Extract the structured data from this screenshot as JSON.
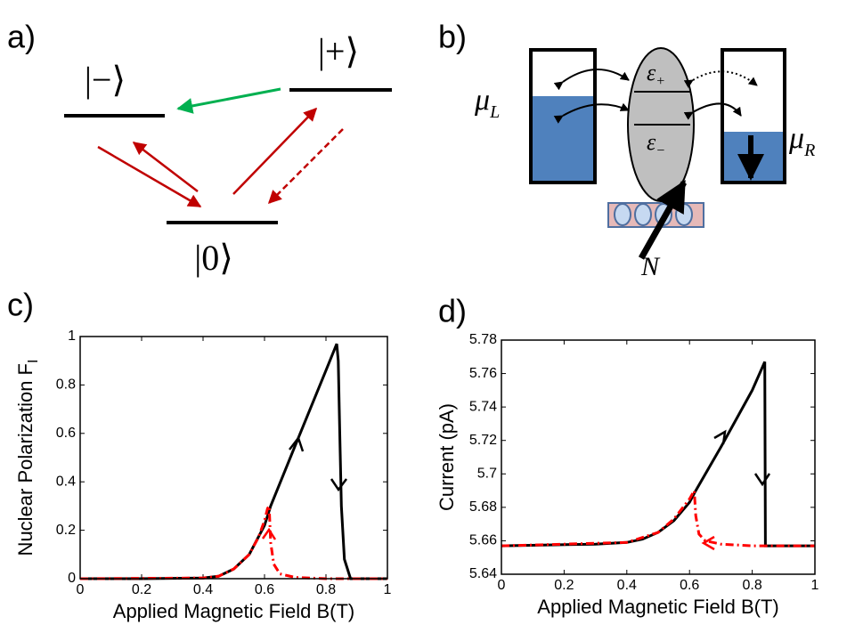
{
  "panels": {
    "a": {
      "label": "a)",
      "levels": [
        {
          "label": "|−⟩"
        },
        {
          "label": "|+⟩"
        },
        {
          "label": "|0⟩"
        }
      ]
    },
    "b": {
      "label": "b)",
      "mu": "μ",
      "mu_left_sub": "L",
      "mu_right_sub": "R",
      "epsilon": "ε",
      "eps_plus_sub": "+",
      "eps_minus_sub": "−",
      "nuclei": "N"
    }
  },
  "chart_data": [
    {
      "type": "line",
      "label": "c)",
      "xlabel": "Applied Magnetic Field B(T)",
      "ylabel": "Nuclear Polarization F",
      "ylabel_subscript": "I",
      "xlim": [
        0,
        1
      ],
      "ylim": [
        0,
        1
      ],
      "xticks": [
        0,
        0.2,
        0.4,
        0.6,
        0.8,
        1
      ],
      "yticks": [
        0,
        0.2,
        0.4,
        0.6,
        0.8,
        1
      ],
      "series": [
        {
          "color": "#000000",
          "linestyle": "solid",
          "x": [
            0,
            0.2,
            0.4,
            0.45,
            0.5,
            0.55,
            0.6,
            0.62,
            0.7,
            0.8,
            0.835,
            0.84,
            0.845,
            0.85,
            0.86,
            0.88,
            1
          ],
          "values": [
            0,
            0,
            0.003,
            0.01,
            0.04,
            0.1,
            0.22,
            0.3,
            0.55,
            0.86,
            0.97,
            0.9,
            0.6,
            0.3,
            0.08,
            0,
            0
          ]
        },
        {
          "color": "#ff0000",
          "linestyle": "dashdot",
          "x": [
            0,
            0.4,
            0.45,
            0.5,
            0.55,
            0.58,
            0.6,
            0.61,
            0.615,
            0.62,
            0.63,
            0.65,
            0.7,
            0.8,
            1
          ],
          "values": [
            0,
            0.003,
            0.01,
            0.04,
            0.1,
            0.17,
            0.24,
            0.29,
            0.3,
            0.15,
            0.06,
            0.02,
            0.005,
            0,
            0
          ]
        }
      ]
    },
    {
      "type": "line",
      "label": "d)",
      "xlabel": "Applied Magnetic Field B(T)",
      "ylabel": "Current (pA)",
      "xlim": [
        0,
        1
      ],
      "ylim": [
        5.64,
        5.78
      ],
      "xticks": [
        0,
        0.2,
        0.4,
        0.6,
        0.8,
        1
      ],
      "yticks": [
        5.64,
        5.66,
        5.68,
        5.7,
        5.72,
        5.74,
        5.76,
        5.78
      ],
      "series": [
        {
          "color": "#000000",
          "linestyle": "solid",
          "x": [
            0,
            0.3,
            0.4,
            0.45,
            0.5,
            0.55,
            0.6,
            0.62,
            0.7,
            0.8,
            0.84,
            0.842,
            1
          ],
          "values": [
            5.657,
            5.658,
            5.659,
            5.661,
            5.665,
            5.672,
            5.683,
            5.69,
            5.716,
            5.75,
            5.767,
            5.657,
            5.657
          ]
        },
        {
          "color": "#ff0000",
          "linestyle": "dashdot",
          "x": [
            0,
            0.4,
            0.5,
            0.55,
            0.6,
            0.615,
            0.62,
            0.63,
            0.65,
            0.7,
            0.8,
            1
          ],
          "values": [
            5.657,
            5.659,
            5.665,
            5.673,
            5.685,
            5.69,
            5.675,
            5.664,
            5.66,
            5.658,
            5.657,
            5.657
          ]
        }
      ]
    }
  ]
}
